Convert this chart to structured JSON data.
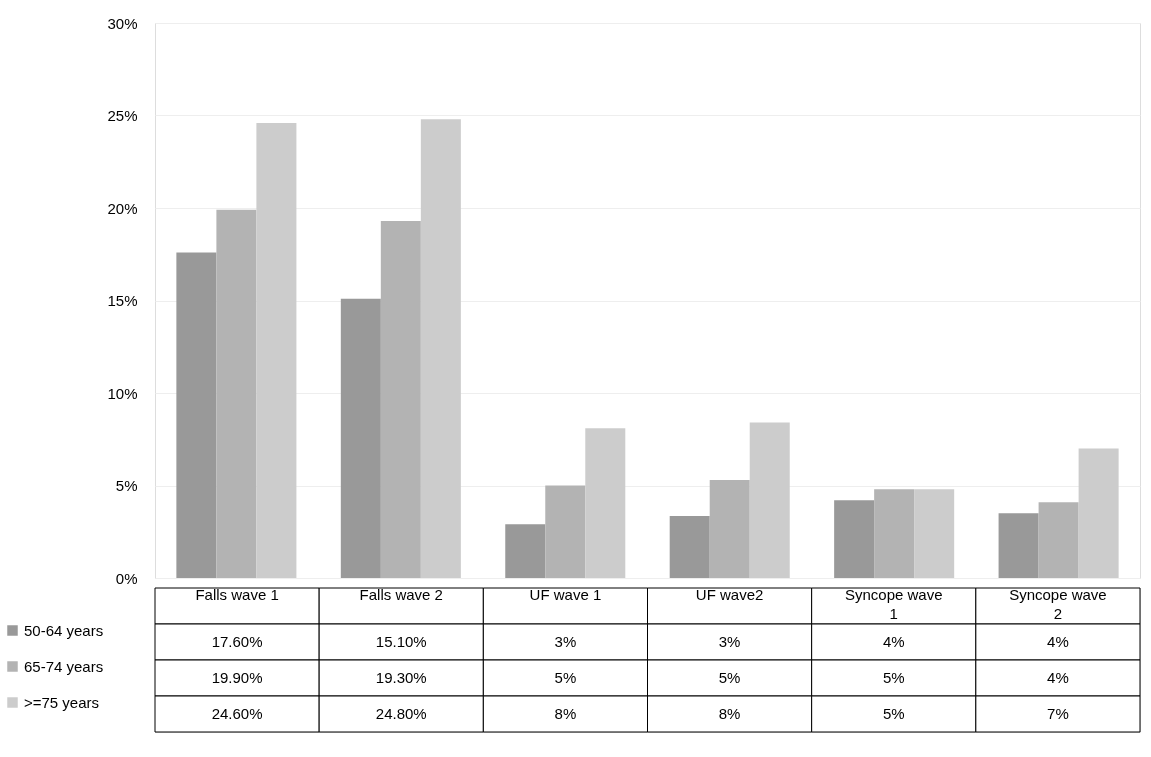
{
  "chart_data": {
    "type": "bar",
    "categories": [
      "Falls wave 1",
      "Falls wave 2",
      "UF wave 1",
      "UF wave2",
      "Syncope wave 1",
      "Syncope wave 2"
    ],
    "series": [
      {
        "name": "50-64 years",
        "color": "#999999",
        "values": [
          17.6,
          15.1,
          2.9,
          3.35,
          4.2,
          3.5
        ],
        "value_labels": [
          "17.60%",
          "15.10%",
          "3%",
          "3%",
          "4%",
          "4%"
        ]
      },
      {
        "name": "65-74 years",
        "color": "#b3b3b3",
        "values": [
          19.9,
          19.3,
          5.0,
          5.3,
          4.8,
          4.1
        ],
        "value_labels": [
          "19.90%",
          "19.30%",
          "5%",
          "5%",
          "5%",
          "4%"
        ]
      },
      {
        "name": ">=75 years",
        "color": "#cccccc",
        "values": [
          24.6,
          24.8,
          8.1,
          8.4,
          4.8,
          7.0
        ],
        "value_labels": [
          "24.60%",
          "24.80%",
          "8%",
          "8%",
          "5%",
          "7%"
        ]
      }
    ],
    "ylim": [
      0,
      30
    ],
    "yticks": [
      {
        "value": 0,
        "label": "0%"
      },
      {
        "value": 5,
        "label": "5%"
      },
      {
        "value": 10,
        "label": "10%"
      },
      {
        "value": 15,
        "label": "15%"
      },
      {
        "value": 20,
        "label": "20%"
      },
      {
        "value": 25,
        "label": "25%"
      },
      {
        "value": 30,
        "label": "30%"
      }
    ],
    "grid": "y",
    "legend": "bottom left"
  }
}
